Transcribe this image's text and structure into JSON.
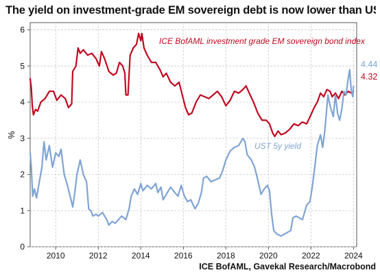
{
  "title": "The yield on investment-grade EM sovereign debt is now lower than USTs",
  "source": "ICE BofAML, Gavekal Research/Macrobond",
  "colors": {
    "em": "#c0081f",
    "ust": "#7fa3d2",
    "grid": "#c8c8c8",
    "axis": "#555555"
  },
  "chart_data": {
    "type": "line",
    "title": "The yield on investment-grade EM sovereign debt is now lower than USTs",
    "xlabel": "",
    "ylabel": "%",
    "xlim": [
      2008.8,
      2024.15
    ],
    "ylim": [
      0,
      6.2
    ],
    "x_ticks": [
      2010,
      2012,
      2014,
      2016,
      2018,
      2020,
      2022,
      2024
    ],
    "y_ticks": [
      0,
      1,
      2,
      3,
      4,
      5,
      6
    ],
    "grid": true,
    "series": [
      {
        "name": "ICE BofAML investment grade EM sovereign bond index",
        "color": "#c0081f",
        "end_value_label": "4.32",
        "points": [
          [
            2008.8,
            4.65
          ],
          [
            2008.85,
            4.4
          ],
          [
            2008.9,
            3.9
          ],
          [
            2008.95,
            3.65
          ],
          [
            2009.05,
            3.8
          ],
          [
            2009.15,
            3.75
          ],
          [
            2009.3,
            4.0
          ],
          [
            2009.5,
            4.1
          ],
          [
            2009.7,
            4.3
          ],
          [
            2009.9,
            4.3
          ],
          [
            2010.05,
            4.05
          ],
          [
            2010.25,
            4.2
          ],
          [
            2010.45,
            4.1
          ],
          [
            2010.6,
            3.85
          ],
          [
            2010.75,
            3.95
          ],
          [
            2010.8,
            4.85
          ],
          [
            2010.95,
            5.0
          ],
          [
            2011.05,
            5.5
          ],
          [
            2011.15,
            5.35
          ],
          [
            2011.3,
            5.45
          ],
          [
            2011.5,
            5.3
          ],
          [
            2011.7,
            5.35
          ],
          [
            2011.9,
            5.2
          ],
          [
            2012.05,
            5.0
          ],
          [
            2012.15,
            5.4
          ],
          [
            2012.3,
            5.2
          ],
          [
            2012.5,
            4.85
          ],
          [
            2012.7,
            4.75
          ],
          [
            2012.85,
            4.8
          ],
          [
            2013.0,
            5.1
          ],
          [
            2013.15,
            5.0
          ],
          [
            2013.25,
            4.8
          ],
          [
            2013.3,
            4.2
          ],
          [
            2013.4,
            4.2
          ],
          [
            2013.5,
            5.3
          ],
          [
            2013.65,
            5.5
          ],
          [
            2013.8,
            5.6
          ],
          [
            2013.9,
            5.9
          ],
          [
            2014.0,
            5.7
          ],
          [
            2014.05,
            5.9
          ],
          [
            2014.15,
            5.5
          ],
          [
            2014.3,
            5.3
          ],
          [
            2014.5,
            5.1
          ],
          [
            2014.7,
            5.1
          ],
          [
            2014.9,
            4.9
          ],
          [
            2015.05,
            4.7
          ],
          [
            2015.2,
            4.8
          ],
          [
            2015.4,
            4.55
          ],
          [
            2015.6,
            4.45
          ],
          [
            2015.8,
            4.55
          ],
          [
            2015.95,
            4.2
          ],
          [
            2016.1,
            3.85
          ],
          [
            2016.25,
            3.65
          ],
          [
            2016.4,
            3.7
          ],
          [
            2016.6,
            4.0
          ],
          [
            2016.8,
            4.2
          ],
          [
            2017.0,
            4.15
          ],
          [
            2017.2,
            4.1
          ],
          [
            2017.4,
            4.2
          ],
          [
            2017.6,
            4.3
          ],
          [
            2017.8,
            4.15
          ],
          [
            2018.0,
            3.9
          ],
          [
            2018.2,
            4.05
          ],
          [
            2018.4,
            4.3
          ],
          [
            2018.6,
            4.25
          ],
          [
            2018.8,
            4.35
          ],
          [
            2018.95,
            4.45
          ],
          [
            2019.1,
            4.25
          ],
          [
            2019.3,
            4.0
          ],
          [
            2019.5,
            3.7
          ],
          [
            2019.7,
            3.5
          ],
          [
            2019.9,
            3.5
          ],
          [
            2020.05,
            3.4
          ],
          [
            2020.2,
            3.15
          ],
          [
            2020.3,
            3.05
          ],
          [
            2020.45,
            3.2
          ],
          [
            2020.6,
            3.1
          ],
          [
            2020.8,
            3.15
          ],
          [
            2021.0,
            3.25
          ],
          [
            2021.2,
            3.4
          ],
          [
            2021.4,
            3.35
          ],
          [
            2021.6,
            3.45
          ],
          [
            2021.8,
            3.4
          ],
          [
            2022.0,
            3.65
          ],
          [
            2022.15,
            3.85
          ],
          [
            2022.3,
            4.0
          ],
          [
            2022.45,
            4.25
          ],
          [
            2022.6,
            4.15
          ],
          [
            2022.75,
            4.35
          ],
          [
            2022.9,
            4.3
          ],
          [
            2023.0,
            4.15
          ],
          [
            2023.15,
            4.25
          ],
          [
            2023.3,
            4.1
          ],
          [
            2023.45,
            4.3
          ],
          [
            2023.6,
            4.2
          ],
          [
            2023.75,
            4.3
          ],
          [
            2023.9,
            4.25
          ],
          [
            2024.0,
            4.3
          ]
        ]
      },
      {
        "name": "UST 5y yield",
        "color": "#7fa3d2",
        "end_value_label": "4.44",
        "points": [
          [
            2008.8,
            2.6
          ],
          [
            2008.85,
            2.2
          ],
          [
            2008.92,
            1.4
          ],
          [
            2009.0,
            1.6
          ],
          [
            2009.1,
            1.35
          ],
          [
            2009.2,
            1.7
          ],
          [
            2009.35,
            2.2
          ],
          [
            2009.45,
            2.9
          ],
          [
            2009.55,
            2.4
          ],
          [
            2009.7,
            2.8
          ],
          [
            2009.85,
            2.2
          ],
          [
            2010.0,
            2.6
          ],
          [
            2010.15,
            2.5
          ],
          [
            2010.25,
            2.7
          ],
          [
            2010.4,
            2.0
          ],
          [
            2010.55,
            1.7
          ],
          [
            2010.7,
            1.35
          ],
          [
            2010.8,
            1.1
          ],
          [
            2010.9,
            1.5
          ],
          [
            2011.0,
            2.0
          ],
          [
            2011.15,
            2.4
          ],
          [
            2011.3,
            2.0
          ],
          [
            2011.45,
            1.8
          ],
          [
            2011.55,
            1.05
          ],
          [
            2011.65,
            1.0
          ],
          [
            2011.75,
            0.85
          ],
          [
            2011.9,
            0.9
          ],
          [
            2012.0,
            0.85
          ],
          [
            2012.2,
            0.95
          ],
          [
            2012.4,
            0.75
          ],
          [
            2012.5,
            0.6
          ],
          [
            2012.65,
            0.7
          ],
          [
            2012.8,
            0.65
          ],
          [
            2012.95,
            0.75
          ],
          [
            2013.1,
            0.85
          ],
          [
            2013.3,
            0.75
          ],
          [
            2013.45,
            1.05
          ],
          [
            2013.55,
            1.4
          ],
          [
            2013.7,
            1.6
          ],
          [
            2013.85,
            1.45
          ],
          [
            2014.0,
            1.75
          ],
          [
            2014.1,
            1.55
          ],
          [
            2014.3,
            1.7
          ],
          [
            2014.5,
            1.6
          ],
          [
            2014.7,
            1.75
          ],
          [
            2014.8,
            1.5
          ],
          [
            2014.95,
            1.65
          ],
          [
            2015.05,
            1.3
          ],
          [
            2015.25,
            1.5
          ],
          [
            2015.4,
            1.65
          ],
          [
            2015.6,
            1.5
          ],
          [
            2015.75,
            1.4
          ],
          [
            2015.9,
            1.7
          ],
          [
            2016.05,
            1.4
          ],
          [
            2016.2,
            1.25
          ],
          [
            2016.35,
            1.3
          ],
          [
            2016.55,
            1.05
          ],
          [
            2016.7,
            1.2
          ],
          [
            2016.85,
            1.5
          ],
          [
            2016.95,
            1.9
          ],
          [
            2017.1,
            1.95
          ],
          [
            2017.3,
            1.8
          ],
          [
            2017.5,
            1.85
          ],
          [
            2017.7,
            1.9
          ],
          [
            2017.85,
            2.1
          ],
          [
            2018.0,
            2.4
          ],
          [
            2018.2,
            2.65
          ],
          [
            2018.4,
            2.75
          ],
          [
            2018.6,
            2.8
          ],
          [
            2018.8,
            3.0
          ],
          [
            2018.9,
            2.9
          ],
          [
            2019.0,
            2.55
          ],
          [
            2019.2,
            2.4
          ],
          [
            2019.35,
            2.2
          ],
          [
            2019.5,
            1.85
          ],
          [
            2019.65,
            1.45
          ],
          [
            2019.8,
            1.6
          ],
          [
            2019.95,
            1.7
          ],
          [
            2020.05,
            1.55
          ],
          [
            2020.15,
            0.9
          ],
          [
            2020.25,
            0.45
          ],
          [
            2020.4,
            0.35
          ],
          [
            2020.6,
            0.3
          ],
          [
            2020.75,
            0.35
          ],
          [
            2020.9,
            0.4
          ],
          [
            2021.05,
            0.45
          ],
          [
            2021.15,
            0.8
          ],
          [
            2021.3,
            0.85
          ],
          [
            2021.45,
            0.8
          ],
          [
            2021.6,
            0.75
          ],
          [
            2021.8,
            1.15
          ],
          [
            2021.95,
            1.25
          ],
          [
            2022.05,
            1.6
          ],
          [
            2022.2,
            2.3
          ],
          [
            2022.3,
            2.8
          ],
          [
            2022.45,
            3.1
          ],
          [
            2022.55,
            2.75
          ],
          [
            2022.65,
            3.2
          ],
          [
            2022.8,
            4.2
          ],
          [
            2022.9,
            3.9
          ],
          [
            2023.05,
            3.6
          ],
          [
            2023.15,
            4.2
          ],
          [
            2023.25,
            3.7
          ],
          [
            2023.35,
            3.5
          ],
          [
            2023.45,
            3.8
          ],
          [
            2023.55,
            4.3
          ],
          [
            2023.65,
            4.2
          ],
          [
            2023.75,
            4.65
          ],
          [
            2023.82,
            4.9
          ],
          [
            2023.9,
            4.3
          ],
          [
            2023.97,
            4.15
          ],
          [
            2024.0,
            4.44
          ]
        ]
      }
    ],
    "annotations": [
      {
        "text": "ICE BofAML investment grade EM sovereign bond index",
        "series": 0
      },
      {
        "text": "UST 5y yield",
        "series": 1
      }
    ]
  }
}
